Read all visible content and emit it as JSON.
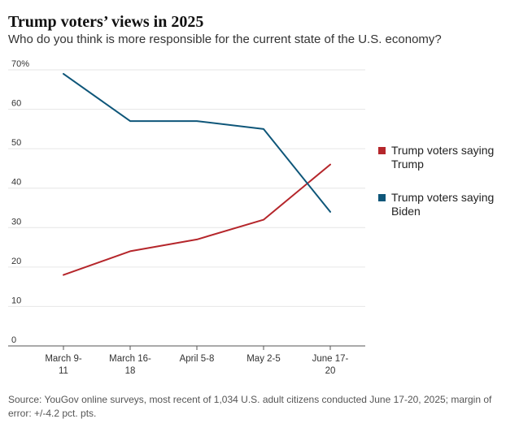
{
  "title": "Trump voters’ views in 2025",
  "subtitle": "Who do you think is more responsible for the current state of the U.S. economy?",
  "source": "Source: YouGov online surveys, most recent of 1,034 U.S. adult citizens conducted June 17-20, 2025; margin of error: +/-4.2 pct. pts.",
  "chart_data": {
    "type": "line",
    "title": "Trump voters’ views in 2025",
    "subtitle": "Who do you think is more responsible for the current state of the U.S. economy?",
    "categories": [
      [
        "March 9-",
        "11"
      ],
      [
        "March 16-",
        "18"
      ],
      [
        "April 5-8"
      ],
      [
        "May 2-5"
      ],
      [
        "June 17-",
        "20"
      ]
    ],
    "y_ticks": [
      "70%",
      "60",
      "50",
      "40",
      "30",
      "20",
      "10",
      "0"
    ],
    "ylim": [
      0,
      70
    ],
    "grid": true,
    "legend_position": "right",
    "series": [
      {
        "name": "Trump voters saying Trump",
        "color": "#b5262b",
        "values": [
          18,
          24,
          27,
          32,
          46
        ]
      },
      {
        "name": "Trump voters saying Biden",
        "color": "#0e5679",
        "values": [
          69,
          57,
          57,
          55,
          34
        ]
      }
    ]
  }
}
